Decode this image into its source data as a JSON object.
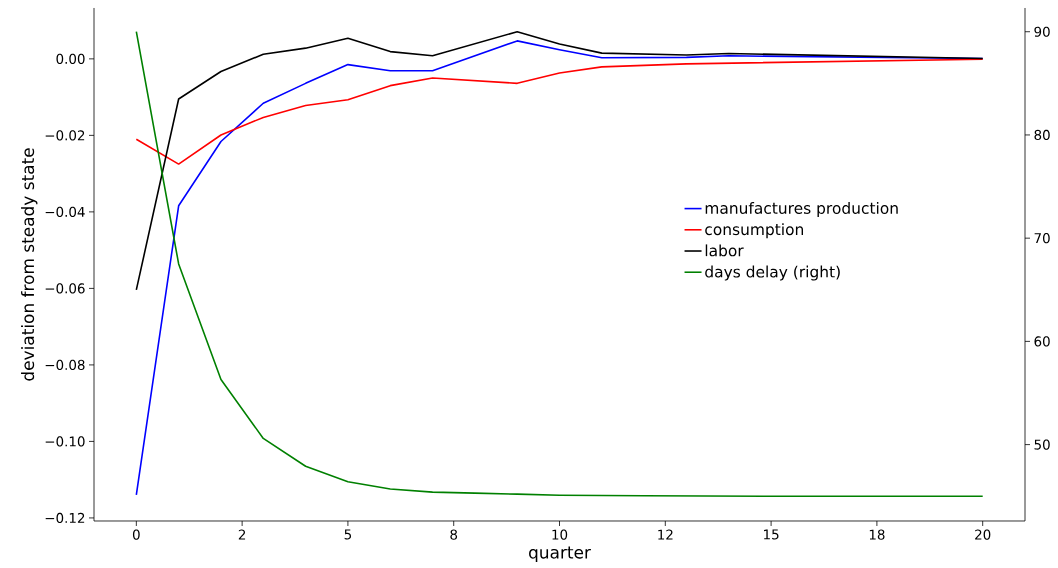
{
  "chart_data": {
    "type": "line",
    "xlabel": "quarter",
    "ylabel": "deviation from steady state",
    "xlim": [
      -1,
      21
    ],
    "ylim": [
      -0.1208,
      0.0133
    ],
    "y2lim": [
      42.6,
      92.3
    ],
    "xticks": [
      0,
      {
        "value": 2.5,
        "label": "2"
      },
      5,
      {
        "value": 7.5,
        "label": "8"
      },
      10,
      {
        "value": 12.5,
        "label": "12"
      },
      15,
      {
        "value": 17.5,
        "label": "18"
      },
      20
    ],
    "yticks": [
      {
        "value": -0.12,
        "label": "−0.12"
      },
      {
        "value": -0.1,
        "label": "−0.10"
      },
      {
        "value": -0.08,
        "label": "−0.08"
      },
      {
        "value": -0.06,
        "label": "−0.06"
      },
      {
        "value": -0.04,
        "label": "−0.04"
      },
      {
        "value": -0.02,
        "label": "−0.02"
      },
      {
        "value": 0,
        "label": "0.00"
      }
    ],
    "y2ticks": [
      50,
      60,
      70,
      80,
      90
    ],
    "legend": "right",
    "grid": false,
    "series": [
      {
        "name": "manufactures production",
        "color": "#0000ff",
        "x": [
          0,
          1,
          2,
          3,
          4,
          5,
          6,
          7,
          9,
          10,
          11,
          13,
          14,
          20
        ],
        "values": [
          -0.114,
          -0.0384,
          -0.0216,
          -0.0116,
          -0.0064,
          -0.0015,
          -0.0031,
          -0.0031,
          0.0047,
          0.0024,
          0.0003,
          0.0004,
          0.0008,
          0.0001
        ]
      },
      {
        "name": "consumption",
        "color": "#ff0000",
        "x": [
          0,
          1,
          2,
          3,
          4,
          5,
          6,
          7,
          9,
          10,
          11,
          13,
          20
        ],
        "values": [
          -0.021,
          -0.0275,
          -0.0199,
          -0.0153,
          -0.0122,
          -0.0107,
          -0.007,
          -0.005,
          -0.0064,
          -0.0037,
          -0.0021,
          -0.0013,
          -0.0001
        ]
      },
      {
        "name": "labor",
        "color": "#000000",
        "x": [
          0,
          1,
          2,
          3,
          4,
          5,
          6,
          7,
          9,
          10,
          11,
          13,
          14,
          20
        ],
        "values": [
          -0.0604,
          -0.0105,
          -0.0033,
          0.0012,
          0.0028,
          0.0054,
          0.0019,
          0.0008,
          0.0071,
          0.0039,
          0.0015,
          0.001,
          0.0014,
          0.0001
        ]
      },
      {
        "name": "days delay (right)",
        "color": "#008000",
        "axis": "y2",
        "x": [
          0,
          1,
          2,
          3,
          4,
          5,
          6,
          7,
          8,
          9,
          10,
          12,
          15,
          20
        ],
        "values": [
          90,
          67.5,
          56.3,
          50.6,
          47.9,
          46.4,
          45.7,
          45.4,
          45.3,
          45.2,
          45.1,
          45.05,
          45.0,
          45.0
        ]
      }
    ]
  }
}
